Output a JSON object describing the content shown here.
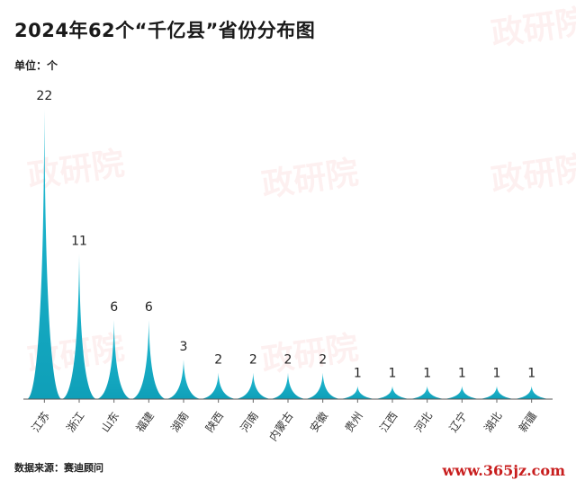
{
  "title": "2024年62个“千亿县”省份分布图",
  "unit_label": "单位：个",
  "source": "数据来源：赛迪顾问",
  "watermark": {
    "text": "政研院",
    "site": "www.365jz.com"
  },
  "colors": {
    "peak": "#22bcd4",
    "peak_dark": "#0f9fb8"
  },
  "chart_data": {
    "type": "area",
    "categories": [
      "江苏",
      "浙江",
      "山东",
      "福建",
      "湖南",
      "陕西",
      "河南",
      "内蒙古",
      "安徽",
      "贵州",
      "江西",
      "河北",
      "辽宁",
      "湖北",
      "新疆"
    ],
    "values": [
      22,
      11,
      6,
      6,
      3,
      2,
      2,
      2,
      2,
      1,
      1,
      1,
      1,
      1,
      1
    ],
    "ylim": [
      0,
      22
    ],
    "grid": false
  }
}
